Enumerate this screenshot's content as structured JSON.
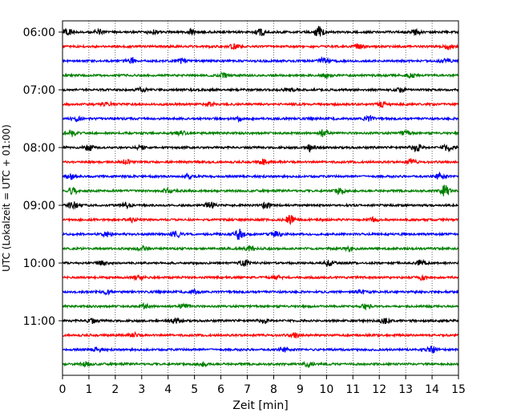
{
  "chart_data": {
    "type": "line",
    "title": "",
    "xlabel": "Zeit  [min]",
    "ylabel": "UTC (Lokalzeit = UTC + 01:00)",
    "xlim": [
      0,
      15
    ],
    "x_ticks": [
      0,
      1,
      2,
      3,
      4,
      5,
      6,
      7,
      8,
      9,
      10,
      11,
      12,
      13,
      14,
      15
    ],
    "x_tick_labels": [
      "0",
      "1",
      "2",
      "3",
      "4",
      "5",
      "6",
      "7",
      "8",
      "9",
      "10",
      "11",
      "12",
      "13",
      "14",
      "15"
    ],
    "y_tick_labels": [
      "06:00",
      "07:00",
      "08:00",
      "09:00",
      "10:00",
      "11:00"
    ],
    "grid": "vertical dotted",
    "trace_colors": [
      "#000000",
      "#ff0000",
      "#0000ff",
      "#008000"
    ],
    "traces": [
      {
        "start": "06:00",
        "bursts": [
          {
            "x": 0.2,
            "a": 0.55
          },
          {
            "x": 1.4,
            "a": 0.35
          },
          {
            "x": 3.4,
            "a": 0.35
          },
          {
            "x": 4.9,
            "a": 0.4
          },
          {
            "x": 7.5,
            "a": 0.5
          },
          {
            "x": 9.7,
            "a": 0.8
          },
          {
            "x": 13.4,
            "a": 0.35
          }
        ]
      },
      {
        "start": "06:15",
        "bursts": [
          {
            "x": 6.5,
            "a": 0.35
          },
          {
            "x": 11.2,
            "a": 0.3
          },
          {
            "x": 14.6,
            "a": 0.4
          }
        ]
      },
      {
        "start": "06:30",
        "bursts": [
          {
            "x": 2.6,
            "a": 0.4
          },
          {
            "x": 4.5,
            "a": 0.4
          },
          {
            "x": 9.9,
            "a": 0.45
          },
          {
            "x": 14.5,
            "a": 0.4
          }
        ]
      },
      {
        "start": "06:45",
        "bursts": [
          {
            "x": 6.1,
            "a": 0.3
          },
          {
            "x": 10.0,
            "a": 0.3
          },
          {
            "x": 13.2,
            "a": 0.3
          }
        ]
      },
      {
        "start": "07:00",
        "bursts": [
          {
            "x": 3.0,
            "a": 0.35
          },
          {
            "x": 8.6,
            "a": 0.3
          },
          {
            "x": 12.8,
            "a": 0.3
          }
        ]
      },
      {
        "start": "07:15",
        "bursts": [
          {
            "x": 1.7,
            "a": 0.3
          },
          {
            "x": 5.6,
            "a": 0.3
          },
          {
            "x": 12.1,
            "a": 0.35
          }
        ]
      },
      {
        "start": "07:30",
        "bursts": [
          {
            "x": 0.5,
            "a": 0.3
          },
          {
            "x": 6.7,
            "a": 0.3
          },
          {
            "x": 11.6,
            "a": 0.35
          }
        ]
      },
      {
        "start": "07:45",
        "bursts": [
          {
            "x": 0.3,
            "a": 0.5
          },
          {
            "x": 4.5,
            "a": 0.35
          },
          {
            "x": 9.9,
            "a": 0.55
          },
          {
            "x": 13.0,
            "a": 0.35
          }
        ]
      },
      {
        "start": "08:00",
        "bursts": [
          {
            "x": 1.0,
            "a": 0.45
          },
          {
            "x": 3.0,
            "a": 0.4
          },
          {
            "x": 9.4,
            "a": 0.5
          },
          {
            "x": 13.4,
            "a": 0.6
          },
          {
            "x": 14.6,
            "a": 0.45
          }
        ]
      },
      {
        "start": "08:15",
        "bursts": [
          {
            "x": 2.4,
            "a": 0.3
          },
          {
            "x": 7.6,
            "a": 0.35
          },
          {
            "x": 13.2,
            "a": 0.35
          }
        ]
      },
      {
        "start": "08:30",
        "bursts": [
          {
            "x": 0.3,
            "a": 0.45
          },
          {
            "x": 4.8,
            "a": 0.35
          },
          {
            "x": 14.3,
            "a": 0.45
          }
        ]
      },
      {
        "start": "08:45",
        "bursts": [
          {
            "x": 0.4,
            "a": 0.45
          },
          {
            "x": 4.0,
            "a": 0.4
          },
          {
            "x": 10.5,
            "a": 0.45
          },
          {
            "x": 14.5,
            "a": 0.8
          }
        ]
      },
      {
        "start": "09:00",
        "bursts": [
          {
            "x": 0.4,
            "a": 0.5
          },
          {
            "x": 2.4,
            "a": 0.35
          },
          {
            "x": 5.6,
            "a": 0.5
          },
          {
            "x": 7.7,
            "a": 0.4
          }
        ]
      },
      {
        "start": "09:15",
        "bursts": [
          {
            "x": 2.6,
            "a": 0.3
          },
          {
            "x": 8.6,
            "a": 0.6
          },
          {
            "x": 11.8,
            "a": 0.3
          }
        ]
      },
      {
        "start": "09:30",
        "bursts": [
          {
            "x": 1.7,
            "a": 0.35
          },
          {
            "x": 4.3,
            "a": 0.45
          },
          {
            "x": 6.7,
            "a": 0.8
          },
          {
            "x": 8.1,
            "a": 0.35
          }
        ]
      },
      {
        "start": "09:45",
        "bursts": [
          {
            "x": 3.0,
            "a": 0.3
          },
          {
            "x": 7.1,
            "a": 0.3
          },
          {
            "x": 10.9,
            "a": 0.3
          }
        ]
      },
      {
        "start": "10:00",
        "bursts": [
          {
            "x": 1.5,
            "a": 0.35
          },
          {
            "x": 6.9,
            "a": 0.4
          },
          {
            "x": 10.1,
            "a": 0.4
          },
          {
            "x": 13.6,
            "a": 0.45
          }
        ]
      },
      {
        "start": "10:15",
        "bursts": [
          {
            "x": 2.9,
            "a": 0.4
          },
          {
            "x": 8.1,
            "a": 0.3
          },
          {
            "x": 13.6,
            "a": 0.3
          }
        ]
      },
      {
        "start": "10:30",
        "bursts": [
          {
            "x": 1.7,
            "a": 0.3
          },
          {
            "x": 5.0,
            "a": 0.3
          },
          {
            "x": 11.3,
            "a": 0.3
          }
        ]
      },
      {
        "start": "10:45",
        "bursts": [
          {
            "x": 3.1,
            "a": 0.3
          },
          {
            "x": 4.6,
            "a": 0.4
          },
          {
            "x": 11.5,
            "a": 0.35
          }
        ]
      },
      {
        "start": "11:00",
        "bursts": [
          {
            "x": 1.1,
            "a": 0.35
          },
          {
            "x": 4.3,
            "a": 0.35
          },
          {
            "x": 7.6,
            "a": 0.3
          },
          {
            "x": 12.2,
            "a": 0.35
          }
        ]
      },
      {
        "start": "11:15",
        "bursts": [
          {
            "x": 2.7,
            "a": 0.3
          },
          {
            "x": 8.8,
            "a": 0.3
          }
        ]
      },
      {
        "start": "11:30",
        "bursts": [
          {
            "x": 1.3,
            "a": 0.3
          },
          {
            "x": 8.4,
            "a": 0.3
          },
          {
            "x": 14.0,
            "a": 0.45
          }
        ]
      },
      {
        "start": "11:45",
        "bursts": [
          {
            "x": 0.9,
            "a": 0.3
          },
          {
            "x": 5.3,
            "a": 0.3
          },
          {
            "x": 9.3,
            "a": 0.3
          }
        ]
      }
    ]
  }
}
